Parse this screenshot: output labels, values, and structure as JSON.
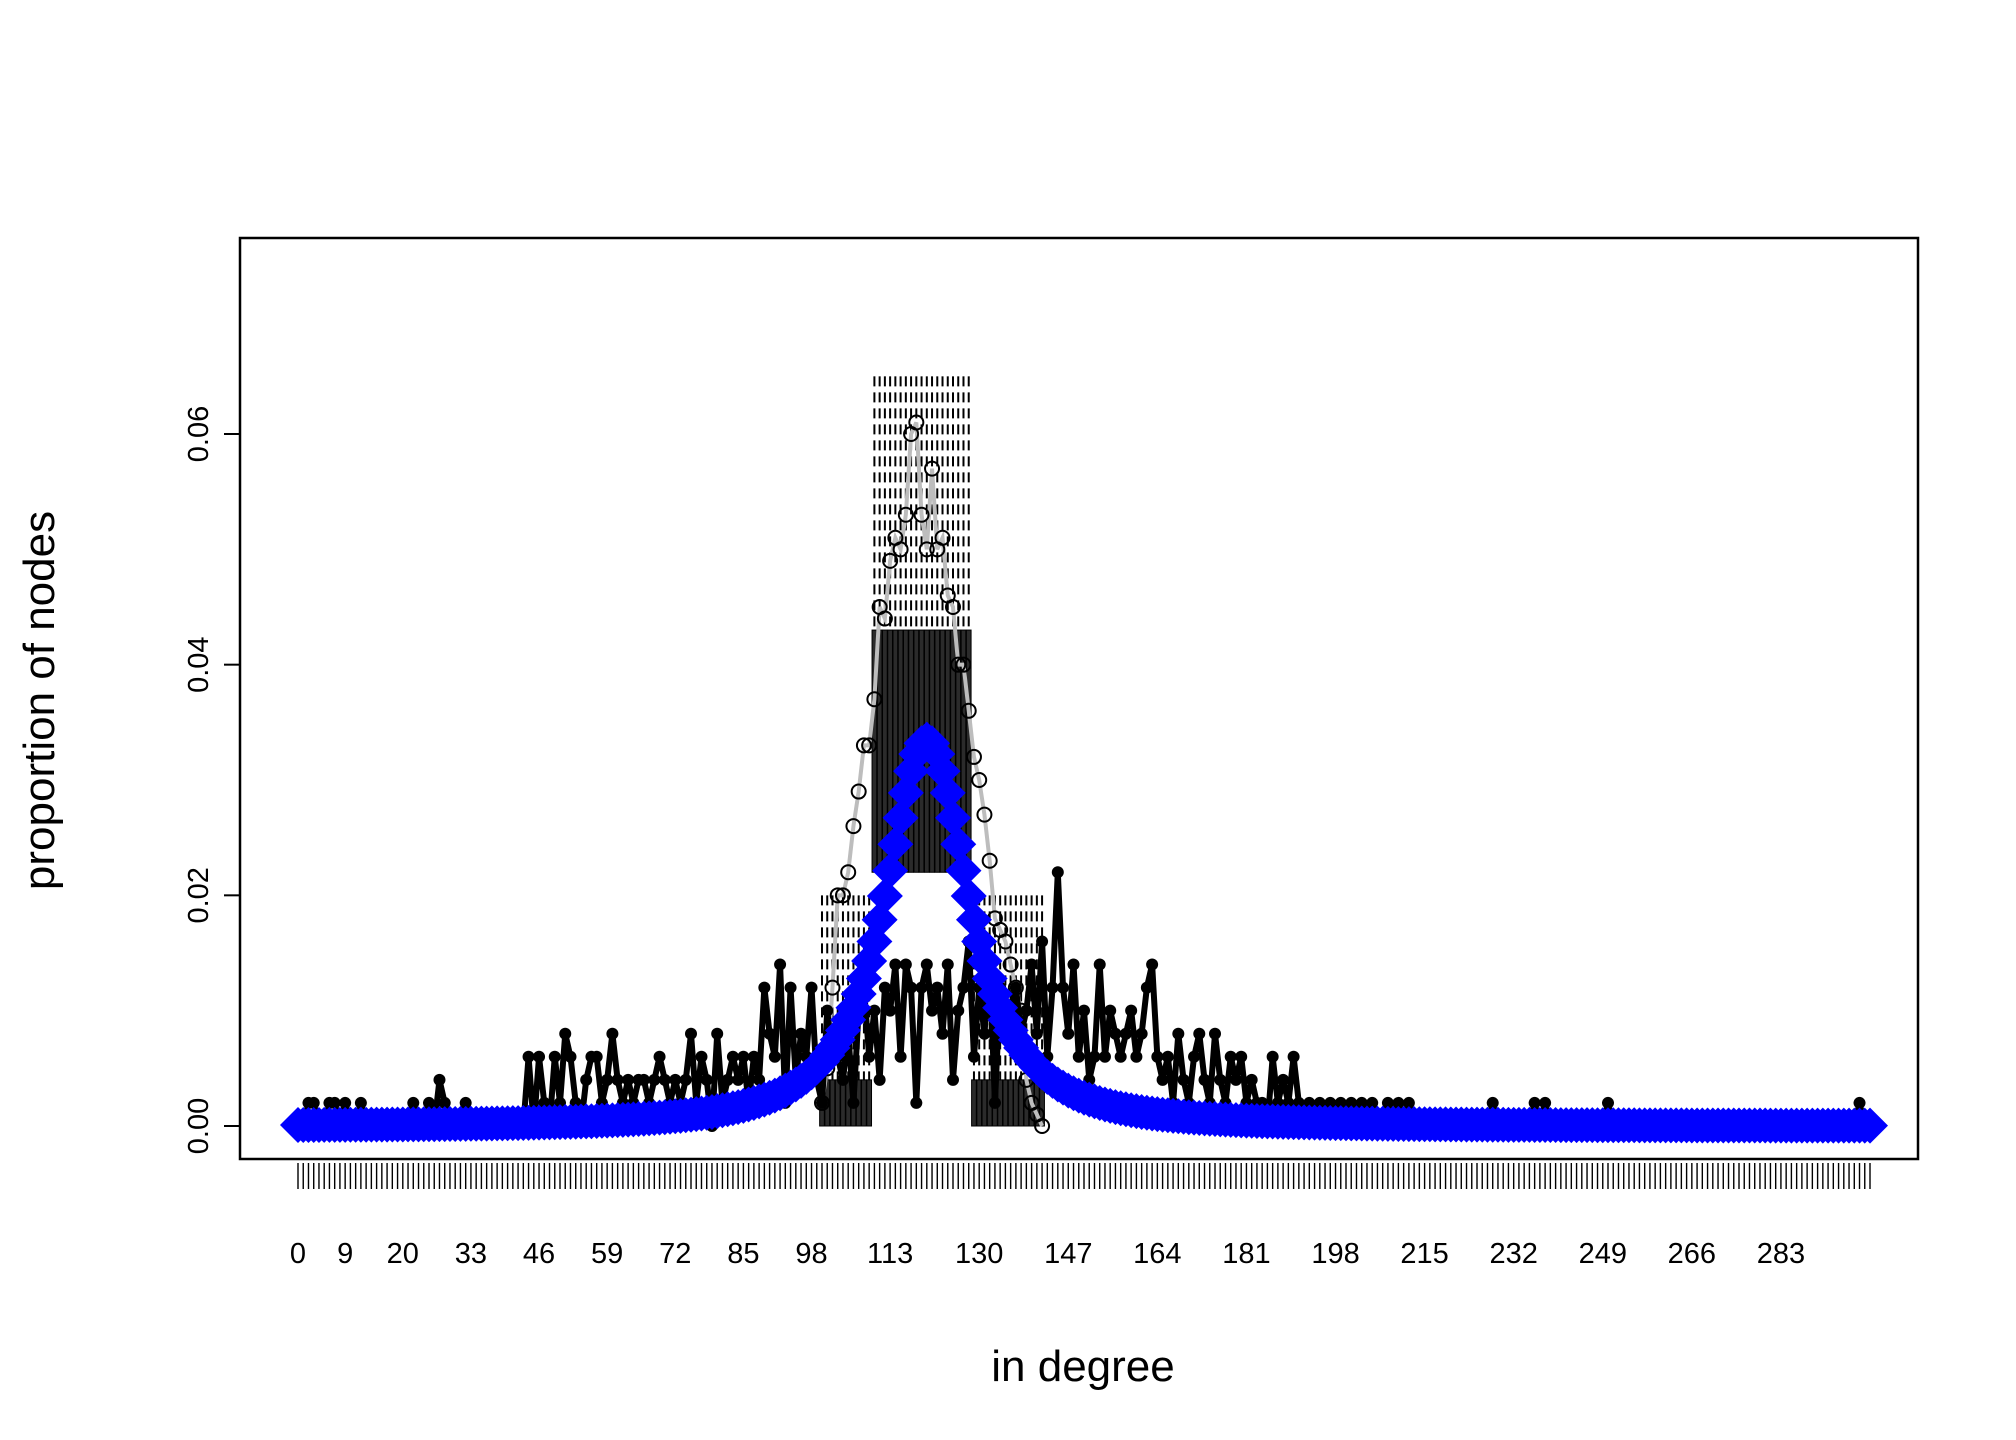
{
  "chart_data": {
    "type": "line",
    "title": "",
    "xlabel": "in degree",
    "ylabel": "proportion of nodes",
    "xlim": [
      0,
      300
    ],
    "ylim": [
      0,
      0.075
    ],
    "x_tick_labels": [
      "0",
      "9",
      "20",
      "33",
      "46",
      "59",
      "72",
      "85",
      "98",
      "113",
      "130",
      "147",
      "164",
      "181",
      "198",
      "215",
      "232",
      "249",
      "266",
      "283"
    ],
    "y_ticks": [
      "0.00",
      "0.02",
      "0.04",
      "0.06"
    ],
    "y_tick_values": [
      0,
      0.02,
      0.04,
      0.06
    ],
    "grid": false,
    "legend": "none",
    "observed_points": [
      [
        0,
        0
      ],
      [
        1,
        0
      ],
      [
        2,
        0.002
      ],
      [
        3,
        0.002
      ],
      [
        4,
        0
      ],
      [
        5,
        0
      ],
      [
        6,
        0.002
      ],
      [
        7,
        0.002
      ],
      [
        8,
        0
      ],
      [
        9,
        0.002
      ],
      [
        10,
        0
      ],
      [
        11,
        0
      ],
      [
        12,
        0.002
      ],
      [
        13,
        0
      ],
      [
        14,
        0
      ],
      [
        15,
        0
      ],
      [
        16,
        0
      ],
      [
        17,
        0
      ],
      [
        18,
        0
      ],
      [
        19,
        0
      ],
      [
        20,
        0
      ],
      [
        21,
        0
      ],
      [
        22,
        0.002
      ],
      [
        23,
        0
      ],
      [
        24,
        0
      ],
      [
        25,
        0.002
      ],
      [
        26,
        0
      ],
      [
        27,
        0.004
      ],
      [
        28,
        0.002
      ],
      [
        29,
        0
      ],
      [
        30,
        0
      ],
      [
        31,
        0
      ],
      [
        32,
        0.002
      ],
      [
        33,
        0
      ],
      [
        34,
        0
      ],
      [
        35,
        0
      ],
      [
        36,
        0
      ],
      [
        37,
        0
      ],
      [
        38,
        0
      ],
      [
        39,
        0
      ],
      [
        40,
        0
      ],
      [
        41,
        0
      ],
      [
        42,
        0
      ],
      [
        43,
        0
      ],
      [
        44,
        0.006
      ],
      [
        45,
        0
      ],
      [
        46,
        0.006
      ],
      [
        47,
        0.002
      ],
      [
        48,
        0
      ],
      [
        49,
        0.006
      ],
      [
        50,
        0.002
      ],
      [
        51,
        0.008
      ],
      [
        52,
        0.006
      ],
      [
        53,
        0.002
      ],
      [
        54,
        0
      ],
      [
        55,
        0.004
      ],
      [
        56,
        0.006
      ],
      [
        57,
        0.006
      ],
      [
        58,
        0.002
      ],
      [
        59,
        0.004
      ],
      [
        60,
        0.008
      ],
      [
        61,
        0.004
      ],
      [
        62,
        0.002
      ],
      [
        63,
        0.004
      ],
      [
        64,
        0.002
      ],
      [
        65,
        0.004
      ],
      [
        66,
        0.004
      ],
      [
        67,
        0.002
      ],
      [
        68,
        0.004
      ],
      [
        69,
        0.006
      ],
      [
        70,
        0.004
      ],
      [
        71,
        0.002
      ],
      [
        72,
        0.004
      ],
      [
        73,
        0.002
      ],
      [
        74,
        0.004
      ],
      [
        75,
        0.008
      ],
      [
        76,
        0.002
      ],
      [
        77,
        0.006
      ],
      [
        78,
        0.004
      ],
      [
        79,
        0
      ],
      [
        80,
        0.008
      ],
      [
        81,
        0.002
      ],
      [
        82,
        0.004
      ],
      [
        83,
        0.006
      ],
      [
        84,
        0.004
      ],
      [
        85,
        0.006
      ],
      [
        86,
        0.002
      ],
      [
        87,
        0.006
      ],
      [
        88,
        0.004
      ],
      [
        89,
        0.012
      ],
      [
        90,
        0.008
      ],
      [
        91,
        0.006
      ],
      [
        92,
        0.014
      ],
      [
        93,
        0.002
      ],
      [
        94,
        0.012
      ],
      [
        95,
        0.004
      ],
      [
        96,
        0.008
      ],
      [
        97,
        0.006
      ],
      [
        98,
        0.012
      ],
      [
        99,
        0.004
      ],
      [
        100,
        0.002
      ],
      [
        101,
        0.01
      ],
      [
        102,
        0.006
      ],
      [
        103,
        0.006
      ],
      [
        104,
        0.004
      ],
      [
        105,
        0.008
      ],
      [
        106,
        0.002
      ],
      [
        107,
        0.01
      ],
      [
        108,
        0.012
      ],
      [
        109,
        0.006
      ],
      [
        110,
        0.01
      ],
      [
        111,
        0.004
      ],
      [
        112,
        0.012
      ],
      [
        113,
        0.01
      ],
      [
        114,
        0.014
      ],
      [
        115,
        0.006
      ],
      [
        116,
        0.014
      ],
      [
        117,
        0.012
      ],
      [
        118,
        0.002
      ],
      [
        119,
        0.012
      ],
      [
        120,
        0.014
      ],
      [
        121,
        0.01
      ],
      [
        122,
        0.012
      ],
      [
        123,
        0.008
      ],
      [
        124,
        0.014
      ],
      [
        125,
        0.004
      ],
      [
        126,
        0.01
      ],
      [
        127,
        0.012
      ],
      [
        128,
        0.016
      ],
      [
        129,
        0.006
      ],
      [
        130,
        0.012
      ],
      [
        131,
        0.008
      ],
      [
        132,
        0.014
      ],
      [
        133,
        0.002
      ],
      [
        134,
        0.012
      ],
      [
        135,
        0.008
      ],
      [
        136,
        0.01
      ],
      [
        137,
        0.012
      ],
      [
        138,
        0.008
      ],
      [
        139,
        0.01
      ],
      [
        140,
        0.014
      ],
      [
        141,
        0.008
      ],
      [
        142,
        0.016
      ],
      [
        143,
        0.006
      ],
      [
        144,
        0.012
      ],
      [
        145,
        0.022
      ],
      [
        146,
        0.012
      ],
      [
        147,
        0.008
      ],
      [
        148,
        0.014
      ],
      [
        149,
        0.006
      ],
      [
        150,
        0.01
      ],
      [
        151,
        0.004
      ],
      [
        152,
        0.006
      ],
      [
        153,
        0.014
      ],
      [
        154,
        0.006
      ],
      [
        155,
        0.01
      ],
      [
        156,
        0.008
      ],
      [
        157,
        0.006
      ],
      [
        158,
        0.008
      ],
      [
        159,
        0.01
      ],
      [
        160,
        0.006
      ],
      [
        161,
        0.008
      ],
      [
        162,
        0.012
      ],
      [
        163,
        0.014
      ],
      [
        164,
        0.006
      ],
      [
        165,
        0.004
      ],
      [
        166,
        0.006
      ],
      [
        167,
        0.002
      ],
      [
        168,
        0.008
      ],
      [
        169,
        0.004
      ],
      [
        170,
        0.002
      ],
      [
        171,
        0.006
      ],
      [
        172,
        0.008
      ],
      [
        173,
        0.004
      ],
      [
        174,
        0.002
      ],
      [
        175,
        0.008
      ],
      [
        176,
        0.004
      ],
      [
        177,
        0.002
      ],
      [
        178,
        0.006
      ],
      [
        179,
        0.004
      ],
      [
        180,
        0.006
      ],
      [
        181,
        0.002
      ],
      [
        182,
        0.004
      ],
      [
        183,
        0.002
      ],
      [
        184,
        0.002
      ],
      [
        185,
        0
      ],
      [
        186,
        0.006
      ],
      [
        187,
        0.002
      ],
      [
        188,
        0.004
      ],
      [
        189,
        0.002
      ],
      [
        190,
        0.006
      ],
      [
        191,
        0.002
      ],
      [
        192,
        0
      ],
      [
        193,
        0.002
      ],
      [
        194,
        0
      ],
      [
        195,
        0.002
      ],
      [
        196,
        0
      ],
      [
        197,
        0.002
      ],
      [
        198,
        0
      ],
      [
        199,
        0.002
      ],
      [
        200,
        0
      ],
      [
        201,
        0.002
      ],
      [
        202,
        0
      ],
      [
        203,
        0.002
      ],
      [
        204,
        0
      ],
      [
        205,
        0.002
      ],
      [
        206,
        0
      ],
      [
        207,
        0
      ],
      [
        208,
        0.002
      ],
      [
        209,
        0
      ],
      [
        210,
        0.002
      ],
      [
        211,
        0
      ],
      [
        212,
        0.002
      ],
      [
        213,
        0
      ],
      [
        214,
        0
      ],
      [
        215,
        0
      ],
      [
        216,
        0
      ],
      [
        217,
        0
      ],
      [
        218,
        0
      ],
      [
        219,
        0
      ],
      [
        220,
        0
      ],
      [
        221,
        0
      ],
      [
        222,
        0
      ],
      [
        223,
        0
      ],
      [
        224,
        0
      ],
      [
        225,
        0
      ],
      [
        226,
        0
      ],
      [
        227,
        0
      ],
      [
        228,
        0.002
      ],
      [
        229,
        0
      ],
      [
        230,
        0
      ],
      [
        231,
        0
      ],
      [
        232,
        0
      ],
      [
        233,
        0
      ],
      [
        234,
        0
      ],
      [
        235,
        0
      ],
      [
        236,
        0.002
      ],
      [
        237,
        0
      ],
      [
        238,
        0.002
      ],
      [
        239,
        0
      ],
      [
        240,
        0
      ],
      [
        241,
        0
      ],
      [
        242,
        0
      ],
      [
        243,
        0
      ],
      [
        244,
        0
      ],
      [
        245,
        0
      ],
      [
        246,
        0
      ],
      [
        247,
        0
      ],
      [
        248,
        0
      ],
      [
        249,
        0
      ],
      [
        250,
        0.002
      ],
      [
        251,
        0
      ],
      [
        252,
        0
      ],
      [
        253,
        0
      ],
      [
        254,
        0
      ],
      [
        255,
        0
      ],
      [
        256,
        0
      ],
      [
        257,
        0
      ],
      [
        258,
        0
      ],
      [
        259,
        0
      ],
      [
        260,
        0
      ],
      [
        261,
        0
      ],
      [
        262,
        0
      ],
      [
        263,
        0
      ],
      [
        264,
        0
      ],
      [
        265,
        0
      ],
      [
        266,
        0
      ],
      [
        267,
        0
      ],
      [
        268,
        0
      ],
      [
        269,
        0
      ],
      [
        270,
        0
      ],
      [
        271,
        0
      ],
      [
        272,
        0
      ],
      [
        273,
        0
      ],
      [
        274,
        0
      ],
      [
        275,
        0
      ],
      [
        276,
        0
      ],
      [
        277,
        0
      ],
      [
        278,
        0
      ],
      [
        279,
        0
      ],
      [
        280,
        0
      ],
      [
        281,
        0
      ],
      [
        282,
        0
      ],
      [
        283,
        0
      ],
      [
        284,
        0
      ],
      [
        285,
        0
      ],
      [
        286,
        0
      ],
      [
        287,
        0
      ],
      [
        288,
        0
      ],
      [
        289,
        0
      ],
      [
        290,
        0
      ],
      [
        291,
        0
      ],
      [
        292,
        0
      ],
      [
        293,
        0
      ],
      [
        294,
        0
      ],
      [
        295,
        0
      ],
      [
        296,
        0
      ],
      [
        297,
        0
      ],
      [
        298,
        0.002
      ],
      [
        299,
        0
      ],
      [
        300,
        0
      ]
    ],
    "simulated_mean": [
      [
        100,
        0.002
      ],
      [
        101,
        0.005
      ],
      [
        102,
        0.012
      ],
      [
        103,
        0.02
      ],
      [
        104,
        0.02
      ],
      [
        105,
        0.022
      ],
      [
        106,
        0.026
      ],
      [
        107,
        0.029
      ],
      [
        108,
        0.033
      ],
      [
        109,
        0.033
      ],
      [
        110,
        0.037
      ],
      [
        111,
        0.045
      ],
      [
        112,
        0.044
      ],
      [
        113,
        0.049
      ],
      [
        114,
        0.051
      ],
      [
        115,
        0.05
      ],
      [
        116,
        0.053
      ],
      [
        117,
        0.06
      ],
      [
        118,
        0.061
      ],
      [
        119,
        0.053
      ],
      [
        120,
        0.05
      ],
      [
        121,
        0.057
      ],
      [
        122,
        0.05
      ],
      [
        123,
        0.051
      ],
      [
        124,
        0.046
      ],
      [
        125,
        0.045
      ],
      [
        126,
        0.04
      ],
      [
        127,
        0.04
      ],
      [
        128,
        0.036
      ],
      [
        129,
        0.032
      ],
      [
        130,
        0.03
      ],
      [
        131,
        0.027
      ],
      [
        132,
        0.023
      ],
      [
        133,
        0.018
      ],
      [
        134,
        0.017
      ],
      [
        135,
        0.016
      ],
      [
        136,
        0.014
      ],
      [
        137,
        0.012
      ],
      [
        138,
        0.01
      ],
      [
        139,
        0.004
      ],
      [
        140,
        0.002
      ],
      [
        141,
        0.001
      ],
      [
        142,
        0
      ]
    ],
    "sim_full_boxes": {
      "x_from": 100,
      "x_to": 142,
      "box_start": 110,
      "box_end": 128,
      "box_lo": 0.022,
      "box_hi": 0.043,
      "whisker_hi": 0.065,
      "flat_box_hi": 0.004
    },
    "series": [
      {
        "values": "observed_points"
      },
      {
        "values": "simulated_mean"
      },
      {
        "values": "geometric_expected"
      }
    ],
    "expected_model": {
      "peak_x": 120,
      "peak_y": 0.0335,
      "half_width": 8
    },
    "colors": {
      "observed": "#000000",
      "simulated": "#bdbdbd",
      "expected": "#0000ff",
      "frame": "#000000"
    }
  }
}
